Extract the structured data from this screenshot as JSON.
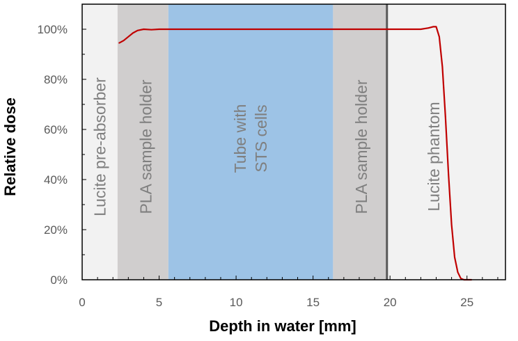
{
  "chart_data": {
    "type": "line",
    "title": "",
    "xlabel": "Depth in water [mm]",
    "ylabel": "Relative dose",
    "xlim": [
      0,
      27.5
    ],
    "ylim": [
      0,
      1.1
    ],
    "x_ticks": [
      0,
      5,
      10,
      15,
      20,
      25
    ],
    "x_tick_labels": [
      "0",
      "5",
      "10",
      "15",
      "20",
      "25"
    ],
    "y_ticks": [
      0,
      0.2,
      0.4,
      0.6,
      0.8,
      1.0
    ],
    "y_tick_labels": [
      "0%",
      "20%",
      "40%",
      "60%",
      "80%",
      "100%"
    ],
    "grid": false,
    "regions": [
      {
        "x0": 0,
        "x1": 2.3,
        "label": [
          "Lucite pre-absorber"
        ],
        "color": "#f2f2f2"
      },
      {
        "x0": 2.3,
        "x1": 5.6,
        "label": [
          "PLA sample holder"
        ],
        "color": "#d0cece"
      },
      {
        "x0": 5.6,
        "x1": 16.3,
        "label": [
          "Tube with",
          "STS cells"
        ],
        "color": "#9dc3e6"
      },
      {
        "x0": 16.3,
        "x1": 19.8,
        "label": [
          "PLA sample holder"
        ],
        "color": "#d0cece"
      },
      {
        "x0": 19.8,
        "x1": 27.5,
        "label": [
          "Lucite phantom"
        ],
        "color": "#f2f2f2"
      }
    ],
    "boundary_line_x": 19.8,
    "series": [
      {
        "color": "#c00000",
        "x": [
          2.4,
          2.7,
          3.0,
          3.3,
          3.6,
          4.0,
          4.5,
          5.0,
          6,
          8,
          10,
          12,
          14,
          16,
          18,
          20,
          22,
          22.5,
          22.8,
          23.0,
          23.2,
          23.4,
          23.6,
          23.8,
          24.0,
          24.2,
          24.4,
          24.6,
          24.8,
          25.0,
          25.3
        ],
        "y": [
          0.945,
          0.955,
          0.97,
          0.985,
          0.995,
          1.0,
          0.998,
          1.0,
          1.0,
          1.0,
          1.0,
          1.0,
          1.0,
          1.0,
          1.0,
          1.0,
          1.0,
          1.005,
          1.01,
          1.01,
          0.97,
          0.85,
          0.65,
          0.42,
          0.22,
          0.09,
          0.03,
          0.005,
          0.0,
          0.0,
          0.0
        ]
      }
    ]
  }
}
